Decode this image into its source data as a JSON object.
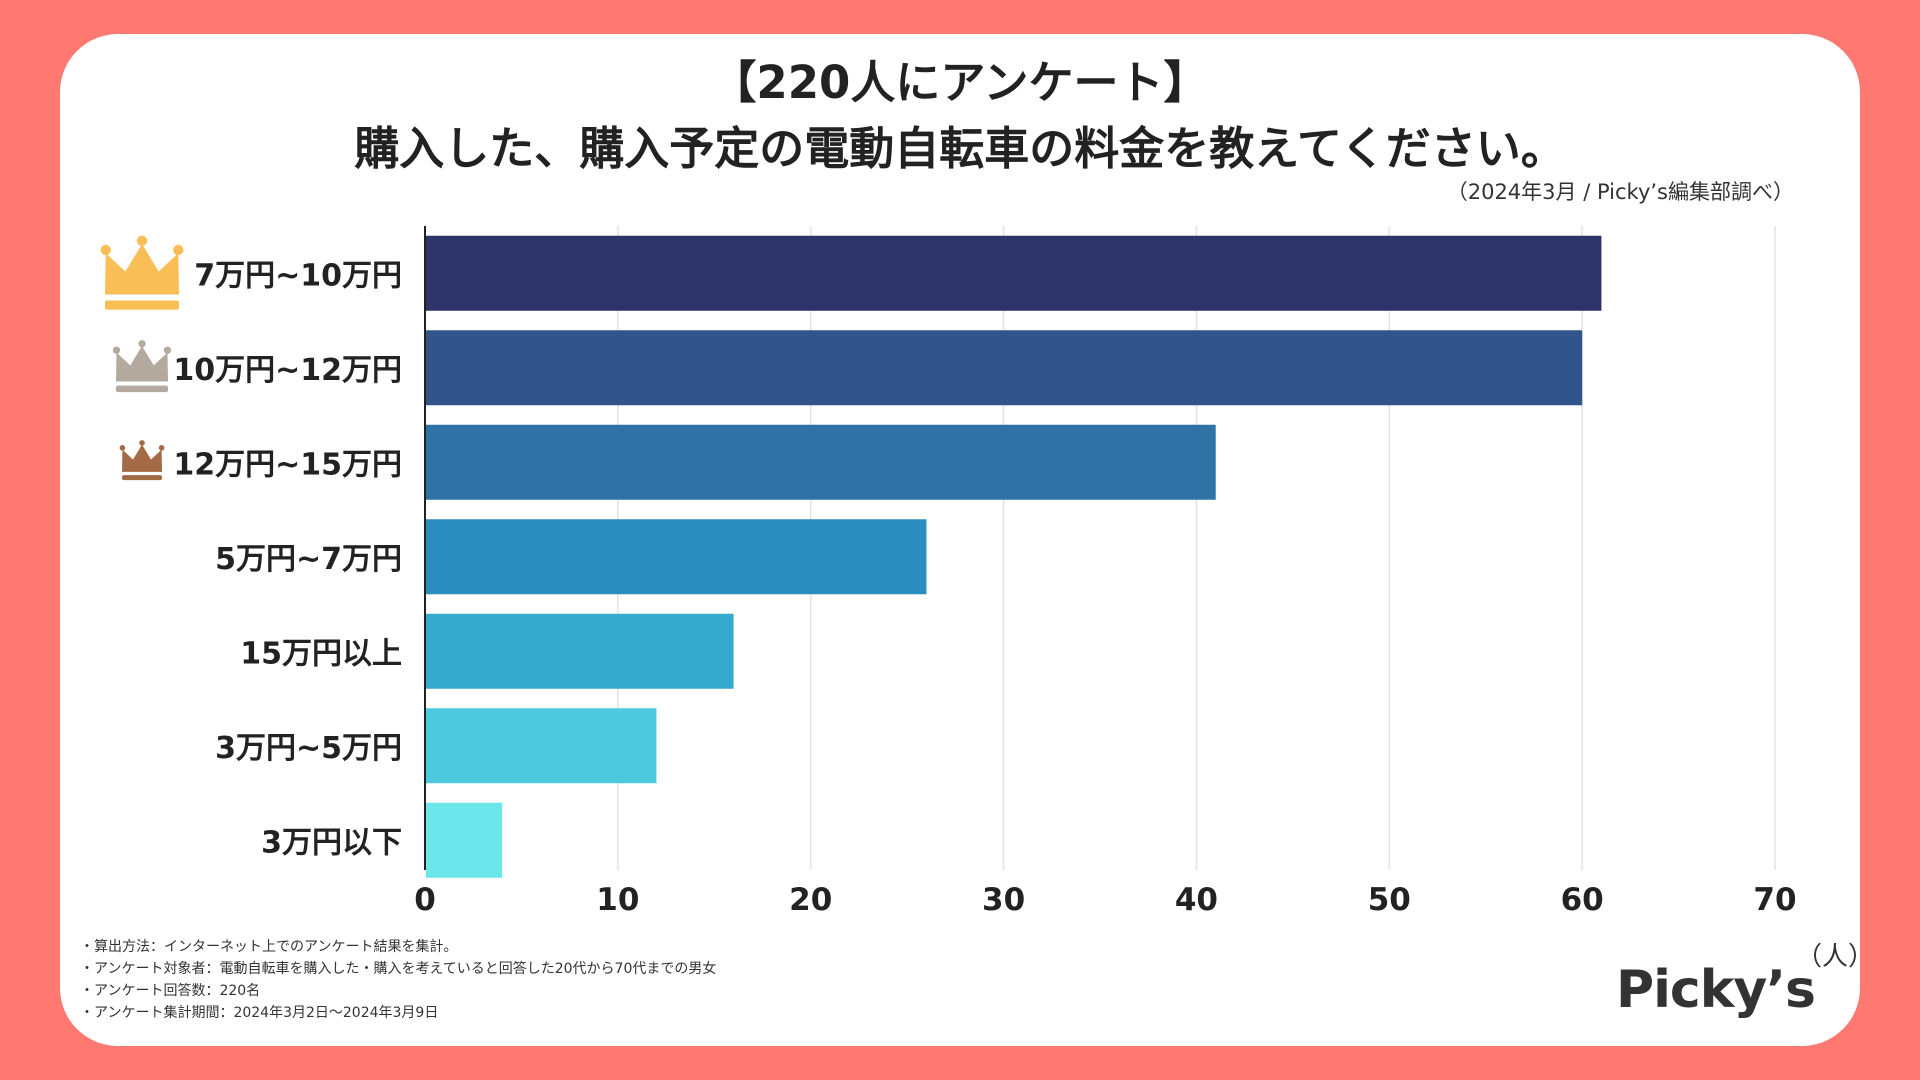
{
  "colors": {
    "background": "#FF7872",
    "card": "#FFFFFF",
    "gold": "#F9BE55",
    "silver": "#B3A99D",
    "bronze": "#A46A45",
    "bars": [
      "#2E3469",
      "#31548A",
      "#2E72A6",
      "#2B8DBD",
      "#36A9CE",
      "#4CC9DE",
      "#6CE6EA"
    ]
  },
  "header": {
    "line1": "【220人にアンケート】",
    "line2": "購入した、購入予定の電動自転車の料金を教えてください。",
    "source": "（2024年3月 / Picky’s編集部調べ）"
  },
  "chart_data": {
    "type": "bar",
    "orientation": "horizontal",
    "categories": [
      "7万円~10万円",
      "10万円~12万円",
      "12万円~15万円",
      "5万円~7万円",
      "15万円以上",
      "3万円~5万円",
      "3万円以下"
    ],
    "values": [
      61,
      60,
      41,
      26,
      16,
      12,
      4
    ],
    "ranks": [
      "gold",
      "silver",
      "bronze",
      null,
      null,
      null,
      null
    ],
    "xlim": [
      0,
      70
    ],
    "xticks": [
      "0",
      "10",
      "20",
      "30",
      "40",
      "50",
      "60",
      "70"
    ],
    "xlabel": "（人）",
    "grid": true,
    "legend": "none"
  },
  "notes": [
    "・算出方法：インターネット上でのアンケート結果を集計。",
    "・アンケート対象者：電動自転車を購入した・購入を考えていると回答した20代から70代までの男女",
    "・アンケート回答数：220名",
    "・アンケート集計期間：2024年3月2日〜2024年3月9日"
  ],
  "brand": "Picky’s"
}
